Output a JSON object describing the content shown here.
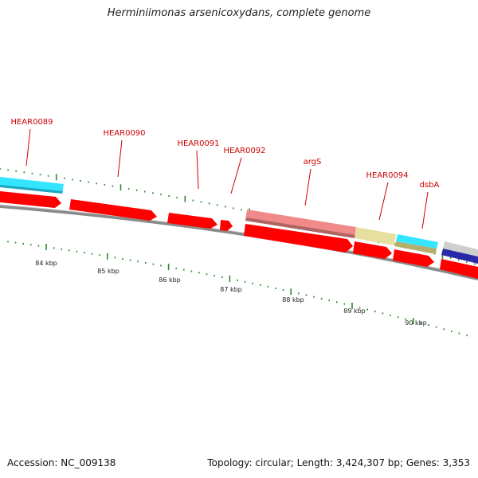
{
  "title": "Herminiimonas arsenicoxydans, complete genome",
  "footer": {
    "accession": "Accession: NC_009138",
    "summary": "Topology: circular; Length: 3,424,307 bp; Genes: 3,353"
  },
  "genes": [
    {
      "label": "HEAR0089"
    },
    {
      "label": "HEAR0090"
    },
    {
      "label": "HEAR0091"
    },
    {
      "label": "HEAR0092"
    },
    {
      "label": "argS"
    },
    {
      "label": "HEAR0094"
    },
    {
      "label": "dsbA"
    }
  ],
  "ticks": [
    {
      "label": "84 kbp"
    },
    {
      "label": "85 kbp"
    },
    {
      "label": "86 kbp"
    },
    {
      "label": "87 kbp"
    },
    {
      "label": "88 kbp"
    },
    {
      "label": "89 kbp"
    },
    {
      "label": "90 kbp"
    }
  ],
  "colors": {
    "cds": "#ff0000",
    "gene_label": "#cc0000",
    "tick": "#2e8b2e",
    "backbone": "#888888",
    "feature_cyan": "#33e5ff",
    "feature_pink": "#f08a8a",
    "feature_khaki": "#e6dfa0",
    "feature_olive": "#b3ae6a",
    "feature_blue": "#2a2aa8"
  }
}
